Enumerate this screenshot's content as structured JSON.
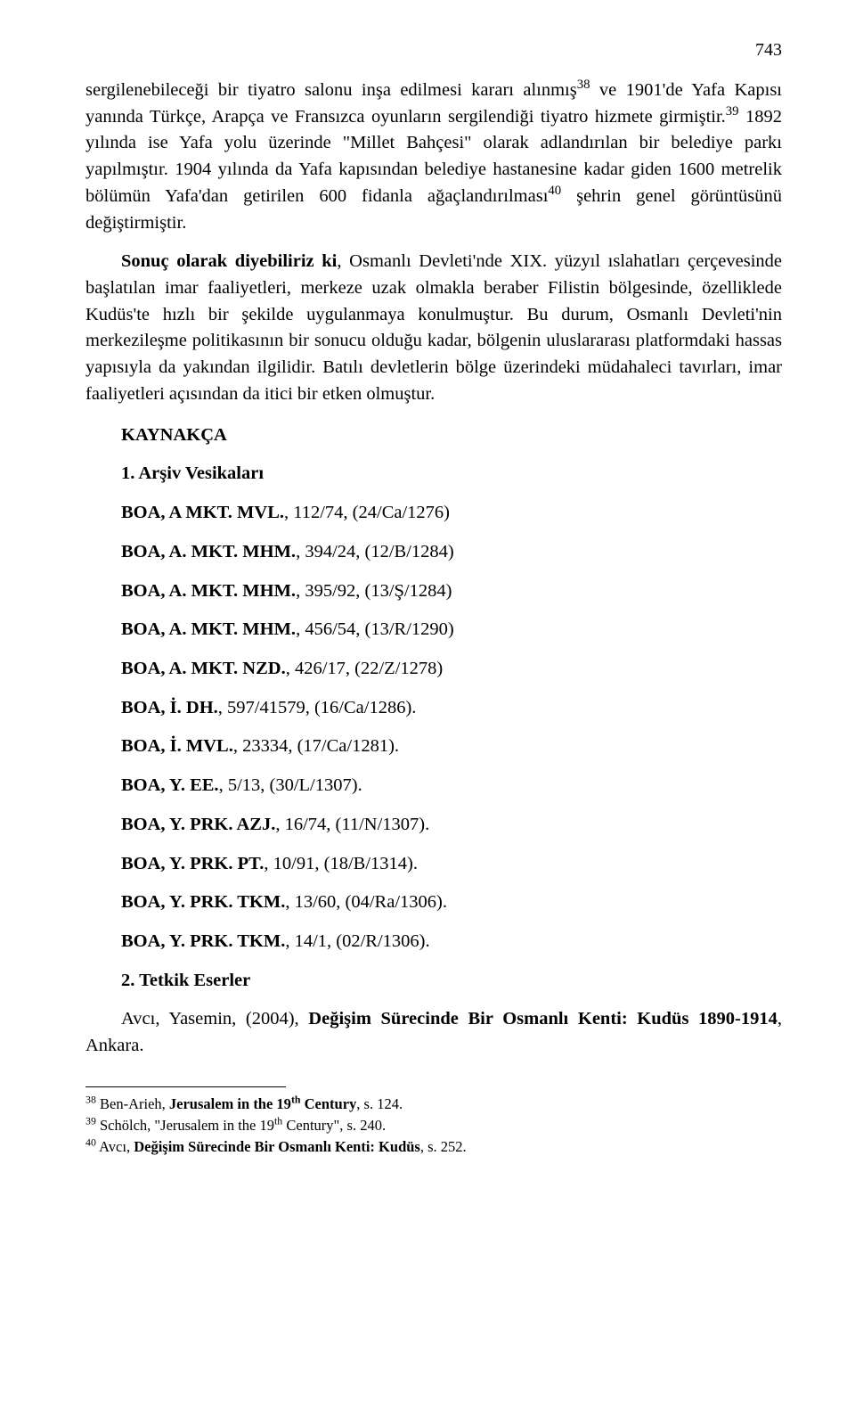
{
  "page_number": "743",
  "paragraphs": {
    "p1_a": "sergilenebileceği bir tiyatro salonu inşa edilmesi kararı alınmış",
    "p1_sup1": "38",
    "p1_b": " ve 1901'de Yafa Kapısı yanında Türkçe, Arapça ve Fransızca oyunların sergilendiği tiyatro hizmete girmiştir.",
    "p1_sup2": "39",
    "p1_c": " 1892 yılında ise Yafa yolu üzerinde \"Millet Bahçesi\" olarak adlandırılan bir belediye parkı yapılmıştır. 1904 yılında da Yafa kapısından belediye hastanesine kadar giden 1600 metrelik bölümün Yafa'dan getirilen 600 fidanla ağaçlandırılması",
    "p1_sup3": "40",
    "p1_d": " şehrin genel görüntüsünü değiştirmiştir.",
    "p2_a": "Sonuç olarak diyebiliriz ki",
    "p2_b": ", Osmanlı Devleti'nde XIX. yüzyıl ıslahatları çerçevesinde başlatılan imar faaliyetleri, merkeze uzak olmakla beraber Filistin bölgesinde, özelliklede Kudüs'te hızlı bir şekilde uygulanmaya konulmuştur. Bu durum, Osmanlı Devleti'nin merkezileşme politikasının bir sonucu olduğu kadar, bölgenin uluslararası platformdaki hassas yapısıyla da yakından ilgilidir. Batılı devletlerin bölge üzerindeki müdahaleci tavırları, imar faaliyetleri açısından da itici bir etken olmuştur."
  },
  "headings": {
    "kaynakca": "KAYNAKÇA",
    "arsiv": "1. Arşiv Vesikaları",
    "tetkik": "2. Tetkik Eserler"
  },
  "refs": [
    {
      "bold": "BOA, A MKT. MVL.",
      "rest": ", 112/74, (24/Ca/1276)"
    },
    {
      "bold": "BOA, A. MKT. MHM.",
      "rest": ", 394/24, (12/B/1284)"
    },
    {
      "bold": "BOA, A. MKT. MHM.",
      "rest": ", 395/92, (13/Ş/1284)"
    },
    {
      "bold": "BOA, A. MKT. MHM.",
      "rest": ", 456/54, (13/R/1290)"
    },
    {
      "bold": "BOA, A. MKT. NZD.",
      "rest": ", 426/17, (22/Z/1278)"
    },
    {
      "bold": "BOA, İ. DH.",
      "rest": ", 597/41579, (16/Ca/1286)."
    },
    {
      "bold": "BOA, İ. MVL.",
      "rest": ", 23334, (17/Ca/1281)."
    },
    {
      "bold": "BOA, Y. EE.",
      "rest": ", 5/13, (30/L/1307)."
    },
    {
      "bold": "BOA, Y. PRK. AZJ.",
      "rest": ", 16/74, (11/N/1307)."
    },
    {
      "bold": "BOA, Y. PRK. PT.",
      "rest": ", 10/91, (18/B/1314)."
    },
    {
      "bold": "BOA, Y. PRK. TKM.",
      "rest": ", 13/60, (04/Ra/1306)."
    },
    {
      "bold": "BOA, Y. PRK. TKM.",
      "rest": ", 14/1, (02/R/1306)."
    }
  ],
  "tetkik_entry": {
    "a": "Avcı, Yasemin, (2004), ",
    "bold": "Değişim Sürecinde Bir Osmanlı Kenti: Kudüs 1890-1914",
    "b": ", Ankara."
  },
  "footnotes": [
    {
      "num": "38",
      "a": " Ben-Arieh, ",
      "bold": "Jerusalem in the 19",
      "sup": "th",
      "bold2": " Century",
      "b": ", s. 124."
    },
    {
      "num": "39",
      "a": " Schölch, \"Jerusalem in the 19",
      "sup": "th",
      "a2": " Century\", s. 240."
    },
    {
      "num": "40",
      "a": " Avcı, ",
      "bold": "Değişim Sürecinde Bir Osmanlı Kenti: Kudüs",
      "b": ", s. 252."
    }
  ]
}
